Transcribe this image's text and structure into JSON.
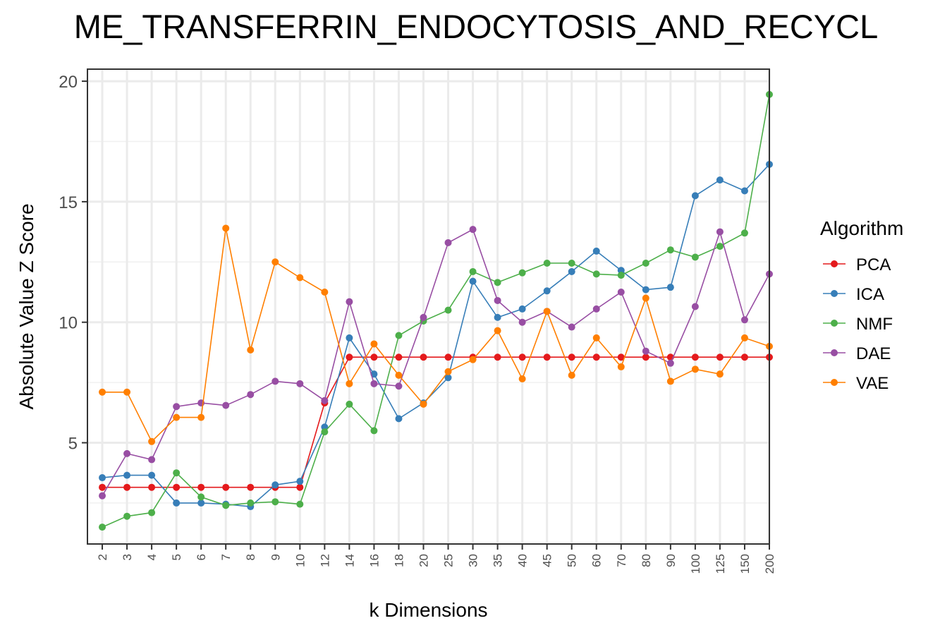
{
  "chart_data": {
    "type": "line",
    "title": "ME_TRANSFERRIN_ENDOCYTOSIS_AND_RECYCL",
    "xlabel": "k Dimensions",
    "ylabel": "Absolute Value Z Score",
    "categories": [
      "2",
      "3",
      "4",
      "5",
      "6",
      "7",
      "8",
      "9",
      "10",
      "12",
      "14",
      "16",
      "18",
      "20",
      "25",
      "30",
      "35",
      "40",
      "45",
      "50",
      "60",
      "70",
      "80",
      "90",
      "100",
      "125",
      "150",
      "200"
    ],
    "ylim": [
      0.8,
      20.5
    ],
    "yticks": [
      5,
      10,
      15,
      20
    ],
    "grid": true,
    "legend": {
      "title": "Algorithm",
      "position": "right"
    },
    "series": [
      {
        "name": "PCA",
        "color": "#E41A1C",
        "values": [
          3.15,
          3.15,
          3.15,
          3.15,
          3.15,
          3.15,
          3.15,
          3.15,
          3.15,
          6.65,
          8.55,
          8.55,
          8.55,
          8.55,
          8.55,
          8.55,
          8.55,
          8.55,
          8.55,
          8.55,
          8.55,
          8.55,
          8.55,
          8.55,
          8.55,
          8.55,
          8.55,
          8.55
        ]
      },
      {
        "name": "ICA",
        "color": "#377EB8",
        "values": [
          3.55,
          3.65,
          3.65,
          2.5,
          2.5,
          2.45,
          2.35,
          3.25,
          3.4,
          5.65,
          9.35,
          7.85,
          6.0,
          6.65,
          7.7,
          11.7,
          10.2,
          10.55,
          11.3,
          12.1,
          12.95,
          12.15,
          11.35,
          11.45,
          15.25,
          15.9,
          15.45,
          16.55
        ]
      },
      {
        "name": "NMF",
        "color": "#4DAF4A",
        "values": [
          1.5,
          1.95,
          2.1,
          3.75,
          2.75,
          2.4,
          2.5,
          2.55,
          2.45,
          5.45,
          6.6,
          5.5,
          9.45,
          10.05,
          10.5,
          12.1,
          11.65,
          12.05,
          12.45,
          12.45,
          12.0,
          11.95,
          12.45,
          13.0,
          12.7,
          13.15,
          13.7,
          19.45
        ]
      },
      {
        "name": "DAE",
        "color": "#984EA3",
        "values": [
          2.8,
          4.55,
          4.3,
          6.5,
          6.65,
          6.55,
          7.0,
          7.55,
          7.45,
          6.75,
          10.85,
          7.45,
          7.35,
          10.2,
          13.3,
          13.85,
          10.9,
          10.0,
          10.45,
          9.8,
          10.55,
          11.25,
          8.8,
          8.3,
          10.65,
          13.75,
          10.1,
          12.0
        ]
      },
      {
        "name": "VAE",
        "color": "#FF7F00",
        "values": [
          7.1,
          7.1,
          5.05,
          6.05,
          6.05,
          13.9,
          8.85,
          12.5,
          11.85,
          11.25,
          7.45,
          9.1,
          7.8,
          6.6,
          7.95,
          8.45,
          9.65,
          7.65,
          10.45,
          7.8,
          9.35,
          8.15,
          11.0,
          7.55,
          8.05,
          7.85,
          9.35,
          9.0
        ]
      }
    ]
  }
}
